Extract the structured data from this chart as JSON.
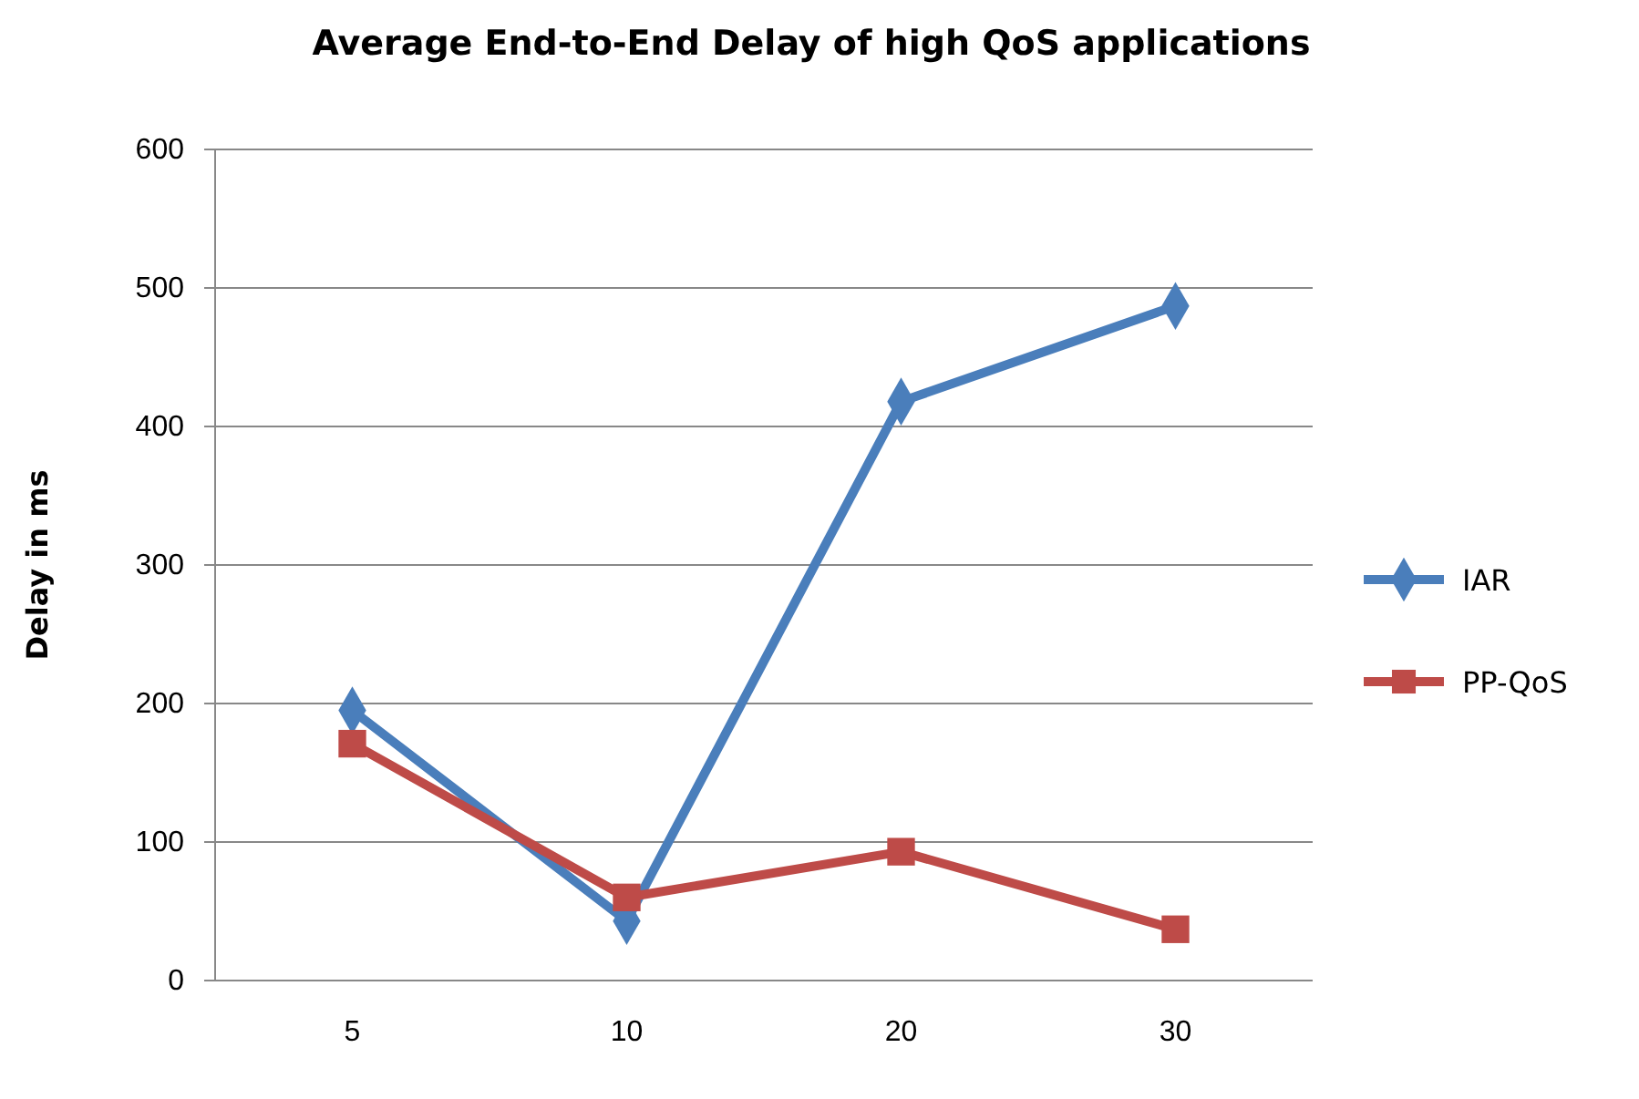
{
  "chart_data": {
    "type": "line",
    "title": "Average End-to-End Delay of high QoS applications",
    "ylabel": "Delay in ms",
    "categories": [
      "5",
      "10",
      "20",
      "30"
    ],
    "series": [
      {
        "name": "IAR",
        "color": "#4a7ebb",
        "values": [
          195,
          43,
          418,
          487
        ],
        "marker": "diamond"
      },
      {
        "name": "PP-QoS",
        "color": "#be4b48",
        "values": [
          171,
          60,
          93,
          37
        ],
        "marker": "square"
      }
    ],
    "ylim": [
      0,
      600
    ],
    "yticks": [
      0,
      100,
      200,
      300,
      400,
      500,
      600
    ],
    "grid": "y",
    "legend": "right"
  }
}
